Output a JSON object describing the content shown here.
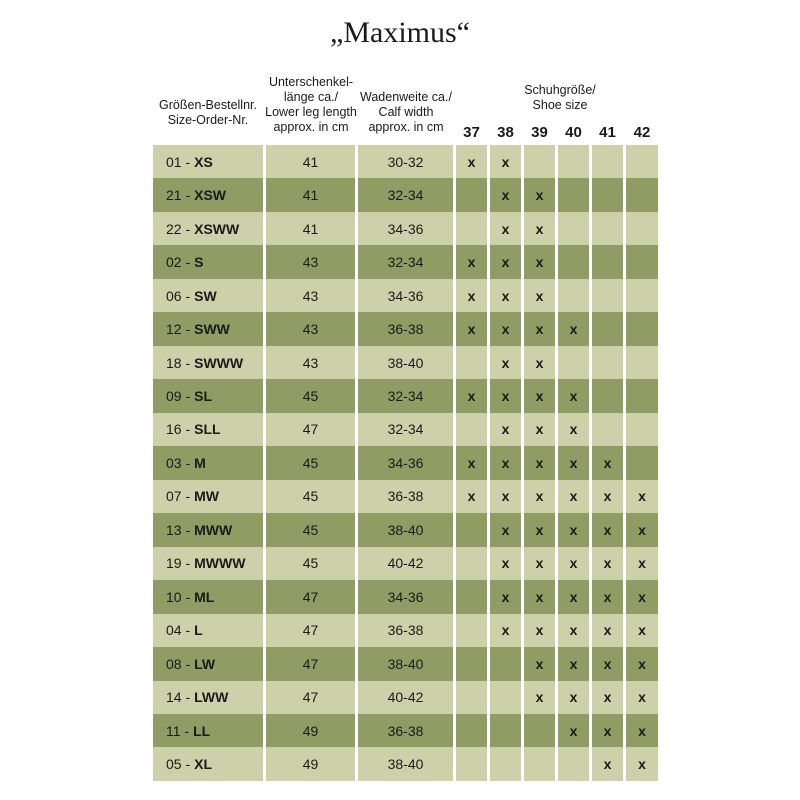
{
  "title": "„Maximus“",
  "header": {
    "order": [
      "Größen-Bestellnr.",
      "Size-Order-Nr."
    ],
    "leg": [
      "Unterschenkel-",
      "länge ca./",
      "Lower leg length",
      "approx. in cm"
    ],
    "calf": [
      "Wadenweite ca./",
      "Calf width",
      "approx. in cm"
    ],
    "shoe": [
      "Schuhgröße/",
      "Shoe size"
    ],
    "shoe_sizes": [
      "37",
      "38",
      "39",
      "40",
      "41",
      "42"
    ]
  },
  "table": {
    "rows": [
      {
        "code": "01 -",
        "size": "XS",
        "leg": 41,
        "calf": "30-32",
        "shoe": [
          "x",
          "x",
          null,
          null,
          null,
          null
        ]
      },
      {
        "code": "21 -",
        "size": "XSW",
        "leg": 41,
        "calf": "32-34",
        "shoe": [
          null,
          "x",
          "x",
          null,
          null,
          null
        ]
      },
      {
        "code": "22 -",
        "size": "XSWW",
        "leg": 41,
        "calf": "34-36",
        "shoe": [
          null,
          "x",
          "x",
          null,
          null,
          null
        ]
      },
      {
        "code": "02 -",
        "size": "S",
        "leg": 43,
        "calf": "32-34",
        "shoe": [
          "x",
          "x",
          "x",
          null,
          null,
          null
        ]
      },
      {
        "code": "06 -",
        "size": "SW",
        "leg": 43,
        "calf": "34-36",
        "shoe": [
          "x",
          "x",
          "x",
          null,
          null,
          null
        ]
      },
      {
        "code": "12 -",
        "size": "SWW",
        "leg": 43,
        "calf": "36-38",
        "shoe": [
          "x",
          "x",
          "x",
          "x",
          null,
          null
        ]
      },
      {
        "code": "18 -",
        "size": "SWWW",
        "leg": 43,
        "calf": "38-40",
        "shoe": [
          null,
          "x",
          "x",
          null,
          null,
          null
        ]
      },
      {
        "code": "09 -",
        "size": "SL",
        "leg": 45,
        "calf": "32-34",
        "shoe": [
          "x",
          "x",
          "x",
          "x",
          null,
          null
        ]
      },
      {
        "code": "16 -",
        "size": "SLL",
        "leg": 47,
        "calf": "32-34",
        "shoe": [
          null,
          "x",
          "x",
          "x",
          null,
          null
        ]
      },
      {
        "code": "03 -",
        "size": "M",
        "leg": 45,
        "calf": "34-36",
        "shoe": [
          "x",
          "x",
          "x",
          "x",
          "x",
          null
        ]
      },
      {
        "code": "07 -",
        "size": "MW",
        "leg": 45,
        "calf": "36-38",
        "shoe": [
          "x",
          "x",
          "x",
          "x",
          "x",
          "x"
        ]
      },
      {
        "code": "13 -",
        "size": "MWW",
        "leg": 45,
        "calf": "38-40",
        "shoe": [
          null,
          "x",
          "x",
          "x",
          "x",
          "x"
        ]
      },
      {
        "code": "19 -",
        "size": "MWWW",
        "leg": 45,
        "calf": "40-42",
        "shoe": [
          null,
          "x",
          "x",
          "x",
          "x",
          "x"
        ]
      },
      {
        "code": "10 -",
        "size": "ML",
        "leg": 47,
        "calf": "34-36",
        "shoe": [
          null,
          "x",
          "x",
          "x",
          "x",
          "x"
        ]
      },
      {
        "code": "04 -",
        "size": "L",
        "leg": 47,
        "calf": "36-38",
        "shoe": [
          null,
          "x",
          "x",
          "x",
          "x",
          "x"
        ]
      },
      {
        "code": "08 -",
        "size": "LW",
        "leg": 47,
        "calf": "38-40",
        "shoe": [
          null,
          null,
          "x",
          "x",
          "x",
          "x"
        ]
      },
      {
        "code": "14 -",
        "size": "LWW",
        "leg": 47,
        "calf": "40-42",
        "shoe": [
          null,
          null,
          "x",
          "x",
          "x",
          "x"
        ]
      },
      {
        "code": "11 -",
        "size": "LL",
        "leg": 49,
        "calf": "36-38",
        "shoe": [
          null,
          null,
          null,
          "x",
          "x",
          "x"
        ]
      },
      {
        "code": "05 -",
        "size": "XL",
        "leg": 49,
        "calf": "38-40",
        "shoe": [
          null,
          null,
          null,
          null,
          "x",
          "x"
        ]
      }
    ]
  }
}
